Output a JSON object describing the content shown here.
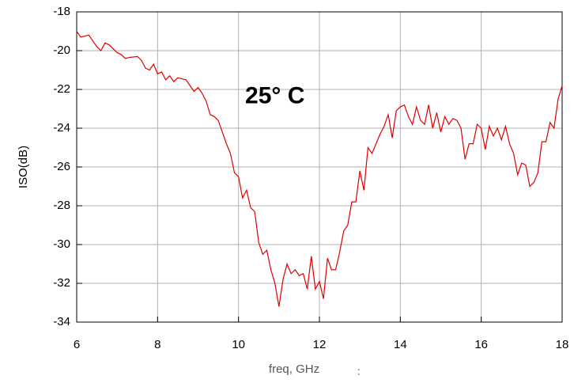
{
  "chart_data": {
    "type": "line",
    "xlabel": "freq, GHz",
    "ylabel": "ISO(dB)",
    "cursor": ":",
    "annotation": {
      "text": "25° C",
      "x": 10.9,
      "y": -22.4
    },
    "x": [
      6.0,
      6.1,
      6.3,
      6.5,
      6.6,
      6.7,
      6.8,
      7.0,
      7.1,
      7.2,
      7.3,
      7.5,
      7.6,
      7.7,
      7.8,
      7.9,
      8.0,
      8.1,
      8.2,
      8.3,
      8.4,
      8.5,
      8.7,
      8.8,
      8.9,
      9.0,
      9.1,
      9.2,
      9.3,
      9.4,
      9.5,
      9.6,
      9.7,
      9.8,
      9.9,
      10.0,
      10.1,
      10.2,
      10.3,
      10.4,
      10.5,
      10.6,
      10.7,
      10.8,
      10.9,
      11.0,
      11.1,
      11.2,
      11.3,
      11.4,
      11.5,
      11.6,
      11.7,
      11.8,
      11.9,
      12.0,
      12.1,
      12.2,
      12.3,
      12.4,
      12.5,
      12.6,
      12.7,
      12.8,
      12.9,
      13.0,
      13.1,
      13.2,
      13.3,
      13.4,
      13.5,
      13.6,
      13.7,
      13.8,
      13.9,
      14.0,
      14.1,
      14.2,
      14.3,
      14.4,
      14.5,
      14.6,
      14.7,
      14.8,
      14.9,
      15.0,
      15.1,
      15.2,
      15.3,
      15.4,
      15.5,
      15.6,
      15.7,
      15.8,
      15.9,
      16.0,
      16.1,
      16.2,
      16.3,
      16.4,
      16.5,
      16.6,
      16.7,
      16.8,
      16.9,
      17.0,
      17.1,
      17.2,
      17.3,
      17.4,
      17.5,
      17.6,
      17.7,
      17.8,
      17.9,
      18.0
    ],
    "series": [
      {
        "name": "ISO",
        "color": "#e00000",
        "values": [
          -19.0,
          -19.3,
          -19.2,
          -19.8,
          -20.0,
          -19.6,
          -19.7,
          -20.1,
          -20.2,
          -20.4,
          -20.35,
          -20.3,
          -20.5,
          -20.9,
          -21.0,
          -20.7,
          -21.2,
          -21.1,
          -21.5,
          -21.3,
          -21.6,
          -21.4,
          -21.5,
          -21.8,
          -22.1,
          -21.9,
          -22.2,
          -22.6,
          -23.3,
          -23.4,
          -23.6,
          -24.2,
          -24.8,
          -25.3,
          -26.3,
          -26.5,
          -27.6,
          -27.2,
          -28.1,
          -28.3,
          -29.9,
          -30.5,
          -30.3,
          -31.3,
          -32.0,
          -33.2,
          -31.8,
          -31.0,
          -31.5,
          -31.3,
          -31.6,
          -31.5,
          -32.3,
          -30.6,
          -32.3,
          -31.9,
          -32.8,
          -30.7,
          -31.3,
          -31.3,
          -30.4,
          -29.3,
          -29.0,
          -27.8,
          -27.8,
          -26.2,
          -27.2,
          -25.0,
          -25.3,
          -24.8,
          -24.3,
          -23.9,
          -23.3,
          -24.5,
          -23.1,
          -22.9,
          -22.8,
          -23.4,
          -23.8,
          -22.9,
          -23.6,
          -23.8,
          -22.8,
          -24.0,
          -23.2,
          -24.2,
          -23.4,
          -23.8,
          -23.5,
          -23.6,
          -24.0,
          -25.6,
          -24.8,
          -24.8,
          -23.8,
          -24.0,
          -25.1,
          -23.9,
          -24.4,
          -24.0,
          -24.6,
          -23.9,
          -24.8,
          -25.3,
          -26.4,
          -25.8,
          -25.9,
          -27.0,
          -26.8,
          -26.3,
          -24.7,
          -24.7,
          -23.7,
          -24.0,
          -22.5,
          -21.8
        ]
      }
    ],
    "xlim": [
      6,
      18
    ],
    "xticks": [
      6,
      8,
      10,
      12,
      14,
      16,
      18
    ],
    "ylim": [
      -34,
      -18
    ],
    "yticks": [
      -34,
      -32,
      -30,
      -28,
      -26,
      -24,
      -22,
      -20,
      -18
    ],
    "grid": true
  }
}
